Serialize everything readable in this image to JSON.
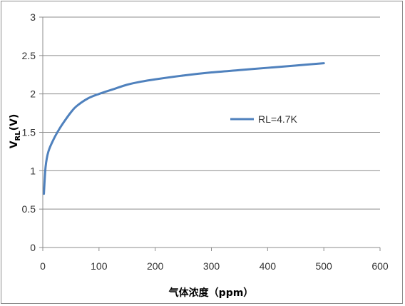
{
  "chart_data": {
    "type": "line",
    "xlabel": "气体浓度（ppm）",
    "ylabel_main": "V",
    "ylabel_sub": "RL",
    "ylabel_unit": "(V)",
    "xlim": [
      0,
      600
    ],
    "ylim": [
      0,
      3
    ],
    "x_ticks": [
      "0",
      "100",
      "200",
      "300",
      "400",
      "500",
      "600"
    ],
    "y_ticks": [
      "0",
      "0.5",
      "1",
      "1.5",
      "2",
      "2.5",
      "3"
    ],
    "grid": "horizontal",
    "legend_position": "right",
    "series": [
      {
        "name": "RL=4.7K",
        "color": "#4f81bd",
        "x": [
          2,
          5,
          10,
          20,
          30,
          40,
          50,
          60,
          80,
          100,
          125,
          150,
          175,
          200,
          250,
          300,
          350,
          400,
          450,
          500
        ],
        "y": [
          0.7,
          1.05,
          1.25,
          1.42,
          1.55,
          1.66,
          1.76,
          1.84,
          1.94,
          2.0,
          2.06,
          2.12,
          2.16,
          2.19,
          2.24,
          2.28,
          2.31,
          2.34,
          2.37,
          2.4
        ]
      }
    ]
  }
}
